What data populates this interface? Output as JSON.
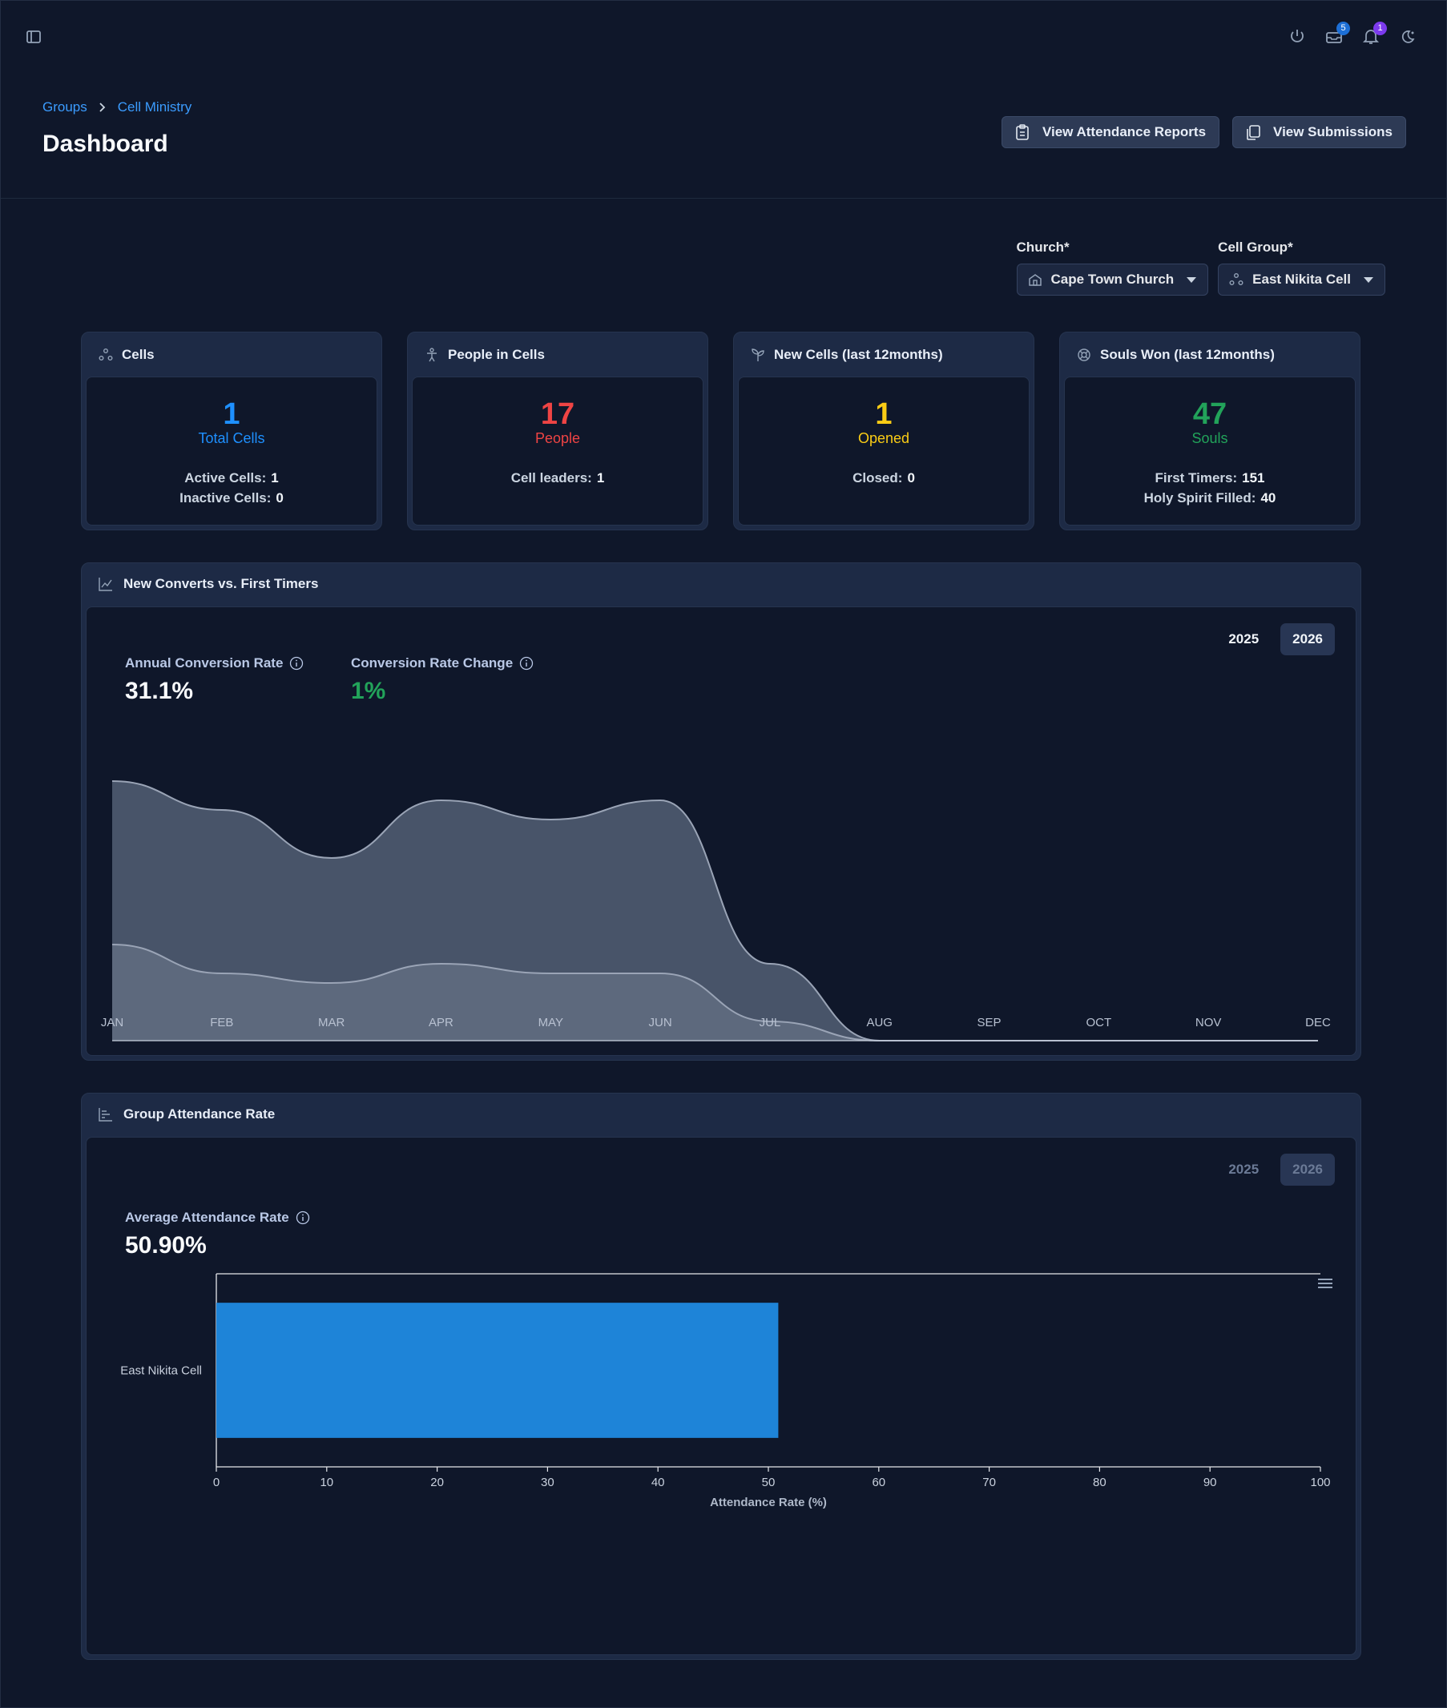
{
  "header": {
    "breadcrumb": [
      "Groups",
      "Cell Ministry"
    ],
    "title": "Dashboard",
    "actions": {
      "attendance_reports": "View Attendance Reports",
      "submissions": "View Submissions"
    },
    "badges": {
      "inbox": "5",
      "notifications": "1"
    }
  },
  "filters": {
    "church": {
      "label": "Church*",
      "value": "Cape Town Church"
    },
    "cell_group": {
      "label": "Cell Group*",
      "value": "East Nikita Cell"
    }
  },
  "stats": {
    "cells": {
      "title": "Cells",
      "value": "1",
      "sub": "Total Cells",
      "active_label": "Active Cells:",
      "active_value": "1",
      "inactive_label": "Inactive Cells:",
      "inactive_value": "0"
    },
    "people": {
      "title": "People in Cells",
      "value": "17",
      "sub": "People",
      "leaders_label": "Cell leaders:",
      "leaders_value": "1"
    },
    "new_cells": {
      "title": "New Cells (last 12months)",
      "value": "1",
      "sub": "Opened",
      "closed_label": "Closed:",
      "closed_value": "0"
    },
    "souls": {
      "title": "Souls Won (last 12months)",
      "value": "47",
      "sub": "Souls",
      "first_timers_label": "First Timers:",
      "first_timers_value": "151",
      "hs_label": "Holy Spirit Filled:",
      "hs_value": "40"
    }
  },
  "converts_panel": {
    "title": "New Converts vs. First Timers",
    "years": [
      "2025",
      "2026"
    ],
    "active_year": "2026",
    "annual_rate_label": "Annual Conversion Rate",
    "annual_rate_value": "31.1%",
    "rate_change_label": "Conversion Rate Change",
    "rate_change_value": "1%"
  },
  "attendance_panel": {
    "title": "Group Attendance Rate",
    "years": [
      "2025",
      "2026"
    ],
    "active_year": "2026",
    "avg_label": "Average Attendance Rate",
    "avg_value": "50.90%"
  },
  "chart_data": [
    {
      "type": "area",
      "title": "",
      "categories": [
        "JAN",
        "FEB",
        "MAR",
        "APR",
        "MAY",
        "JUN",
        "JUL",
        "AUG",
        "SEP",
        "OCT",
        "NOV",
        "DEC"
      ],
      "ylim": [
        0,
        28
      ],
      "series": [
        {
          "values": [
            27,
            24,
            19,
            25,
            23,
            25,
            8,
            0,
            0,
            0,
            0,
            0
          ]
        },
        {
          "values": [
            10,
            7,
            6,
            8,
            7,
            7,
            2,
            0,
            0,
            0,
            0,
            0
          ]
        }
      ],
      "colors": [
        "#485469",
        "#5f6a7e"
      ],
      "grid": false
    },
    {
      "type": "bar",
      "orientation": "horizontal",
      "categories": [
        "East Nikita Cell"
      ],
      "values": [
        50.9
      ],
      "xlabel": "Attendance Rate (%)",
      "xlim": [
        0,
        100
      ],
      "xticks": [
        0,
        10,
        20,
        30,
        40,
        50,
        60,
        70,
        80,
        90,
        100
      ],
      "color": "#1e84d8"
    }
  ]
}
